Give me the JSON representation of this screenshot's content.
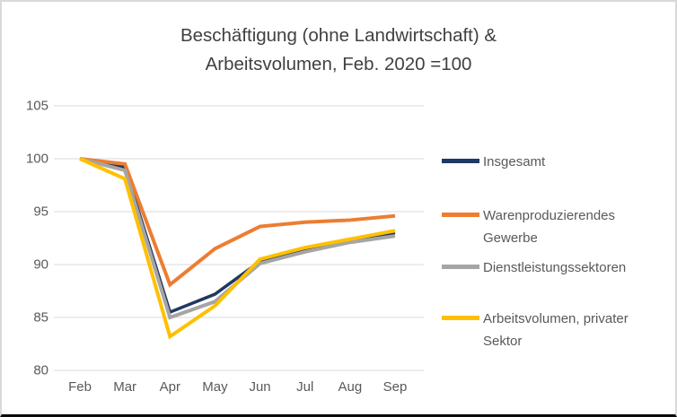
{
  "window": {
    "background": "#FFFFFF",
    "border_color": "#D9D9D9",
    "bottom_bar_color": "#0B0B0B"
  },
  "chart_data": {
    "type": "line",
    "title_lines": [
      "Beschäftigung (ohne Landwirtschaft) &",
      "Arbeitsvolumen, Feb. 2020 =100"
    ],
    "title_color": "#404040",
    "categories": [
      "Feb",
      "Mar",
      "Apr",
      "May",
      "Jun",
      "Jul",
      "Aug",
      "Sep"
    ],
    "series": [
      {
        "name": "Insgesamt",
        "color": "#1F3864",
        "values": [
          100,
          99.2,
          85.5,
          87.2,
          90.3,
          91.5,
          92.4,
          93.0
        ]
      },
      {
        "name": "Warenproduzierendes Gewerbe",
        "color": "#ED7D31",
        "values": [
          100,
          99.5,
          88.1,
          91.5,
          93.6,
          94.0,
          94.2,
          94.6
        ]
      },
      {
        "name": "Dienstleistungssektoren",
        "color": "#A5A5A5",
        "values": [
          100,
          98.9,
          85.0,
          86.5,
          90.1,
          91.2,
          92.1,
          92.7
        ]
      },
      {
        "name": "Arbeitsvolumen, privater Sektor",
        "color": "#FFC000",
        "values": [
          100,
          98.1,
          83.2,
          86.1,
          90.5,
          91.6,
          92.4,
          93.2
        ]
      }
    ],
    "ylim": [
      80,
      105
    ],
    "yticks": [
      80,
      85,
      90,
      95,
      100,
      105
    ],
    "xlabel": "",
    "ylabel": "",
    "grid": true,
    "gridline_color": "#D9D9D9",
    "axis_text_color": "#595959",
    "legend_position": "right"
  }
}
